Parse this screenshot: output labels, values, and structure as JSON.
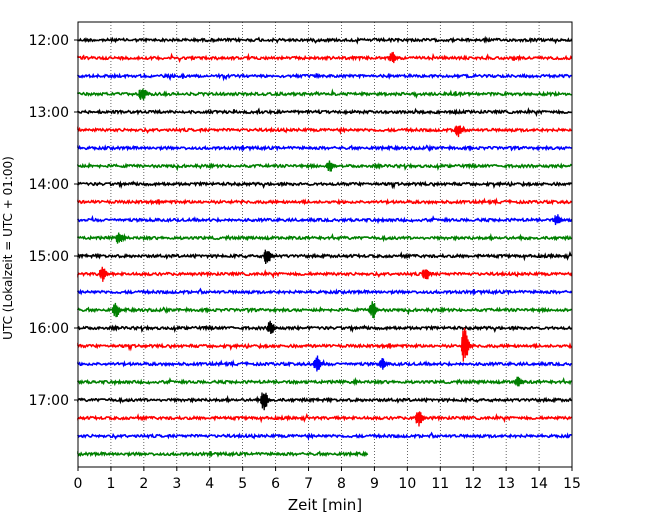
{
  "chart_data": {
    "type": "line",
    "title": "",
    "xlabel": "Zeit  [min]",
    "ylabel": "UTC (Lokalzeit = UTC + 01:00)",
    "xlim": [
      0,
      15
    ],
    "x_ticks": [
      "0",
      "1",
      "2",
      "3",
      "4",
      "5",
      "6",
      "7",
      "8",
      "9",
      "10",
      "11",
      "12",
      "13",
      "14",
      "15"
    ],
    "y_ticks": [
      "12:00",
      "13:00",
      "14:00",
      "15:00",
      "16:00",
      "17:00"
    ],
    "grid": "vertical dotted lines at each minute",
    "row_interval_minutes": 15,
    "row_colors": [
      "#000000",
      "#ff0000",
      "#0000ff",
      "#008000"
    ],
    "rows": [
      {
        "start": "12:00",
        "color": "#000000",
        "end_min": 15
      },
      {
        "start": "12:15",
        "color": "#ff0000",
        "end_min": 15
      },
      {
        "start": "12:30",
        "color": "#0000ff",
        "end_min": 15
      },
      {
        "start": "12:45",
        "color": "#008000",
        "end_min": 15
      },
      {
        "start": "13:00",
        "color": "#000000",
        "end_min": 15
      },
      {
        "start": "13:15",
        "color": "#ff0000",
        "end_min": 15
      },
      {
        "start": "13:30",
        "color": "#0000ff",
        "end_min": 15
      },
      {
        "start": "13:45",
        "color": "#008000",
        "end_min": 15
      },
      {
        "start": "14:00",
        "color": "#000000",
        "end_min": 15
      },
      {
        "start": "14:15",
        "color": "#ff0000",
        "end_min": 15
      },
      {
        "start": "14:30",
        "color": "#0000ff",
        "end_min": 15
      },
      {
        "start": "14:45",
        "color": "#008000",
        "end_min": 15
      },
      {
        "start": "15:00",
        "color": "#000000",
        "end_min": 15
      },
      {
        "start": "15:15",
        "color": "#ff0000",
        "end_min": 15
      },
      {
        "start": "15:30",
        "color": "#0000ff",
        "end_min": 15
      },
      {
        "start": "15:45",
        "color": "#008000",
        "end_min": 15
      },
      {
        "start": "16:00",
        "color": "#000000",
        "end_min": 15
      },
      {
        "start": "16:15",
        "color": "#ff0000",
        "end_min": 15
      },
      {
        "start": "16:30",
        "color": "#0000ff",
        "end_min": 15
      },
      {
        "start": "16:45",
        "color": "#008000",
        "end_min": 15
      },
      {
        "start": "17:00",
        "color": "#000000",
        "end_min": 15
      },
      {
        "start": "17:15",
        "color": "#ff0000",
        "end_min": 15
      },
      {
        "start": "17:30",
        "color": "#0000ff",
        "end_min": 15
      },
      {
        "start": "17:45",
        "color": "#008000",
        "end_min": 8.8
      }
    ],
    "events": [
      {
        "row": 1,
        "min": 9.6,
        "amp": 0.35
      },
      {
        "row": 3,
        "min": 2.0,
        "amp": 0.45
      },
      {
        "row": 5,
        "min": 11.6,
        "amp": 0.4
      },
      {
        "row": 7,
        "min": 7.7,
        "amp": 0.35
      },
      {
        "row": 10,
        "min": 14.6,
        "amp": 0.35
      },
      {
        "row": 11,
        "min": 1.3,
        "amp": 0.35
      },
      {
        "row": 12,
        "min": 5.8,
        "amp": 0.5
      },
      {
        "row": 13,
        "min": 0.8,
        "amp": 0.45
      },
      {
        "row": 13,
        "min": 10.6,
        "amp": 0.45
      },
      {
        "row": 15,
        "min": 1.2,
        "amp": 0.45
      },
      {
        "row": 15,
        "min": 9.0,
        "amp": 0.55
      },
      {
        "row": 16,
        "min": 5.9,
        "amp": 0.45
      },
      {
        "row": 17,
        "min": 11.8,
        "amp": 1.15
      },
      {
        "row": 18,
        "min": 7.3,
        "amp": 0.5
      },
      {
        "row": 18,
        "min": 9.3,
        "amp": 0.35
      },
      {
        "row": 19,
        "min": 13.4,
        "amp": 0.3
      },
      {
        "row": 20,
        "min": 5.7,
        "amp": 0.6
      },
      {
        "row": 21,
        "min": 10.4,
        "amp": 0.5
      }
    ]
  }
}
